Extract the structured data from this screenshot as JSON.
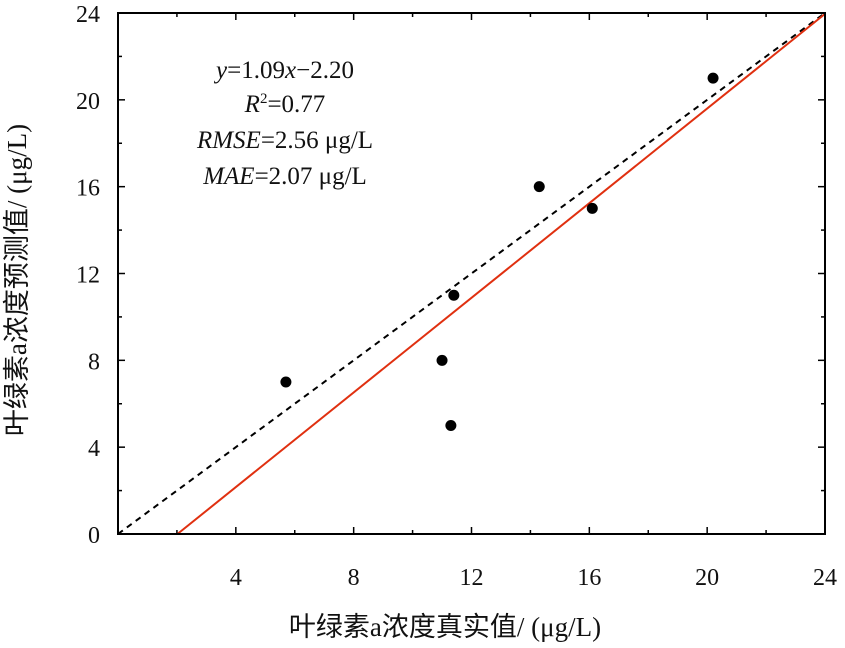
{
  "chart_data": {
    "type": "scatter",
    "xlabel": "叶绿素a浓度真实值/ (μg/L)",
    "ylabel": "叶绿素a浓度预测值/ (μg/L)",
    "xlim": [
      0,
      24
    ],
    "ylim": [
      0,
      24
    ],
    "x_ticks": [
      "4",
      "8",
      "12",
      "16",
      "20",
      "24"
    ],
    "y_ticks": [
      "0",
      "4",
      "8",
      "12",
      "16",
      "20",
      "24"
    ],
    "grid": false,
    "points": [
      {
        "x": 5.7,
        "y": 7
      },
      {
        "x": 11.0,
        "y": 8
      },
      {
        "x": 11.3,
        "y": 5
      },
      {
        "x": 11.4,
        "y": 11
      },
      {
        "x": 14.3,
        "y": 16
      },
      {
        "x": 16.1,
        "y": 15
      },
      {
        "x": 20.2,
        "y": 21
      }
    ],
    "fit_line": {
      "slope": 1.09,
      "intercept": -2.2,
      "color": "#e03010"
    },
    "identity_line": {
      "slope": 1,
      "intercept": 0,
      "style": "dashed",
      "color": "#000000"
    },
    "stats": {
      "equation": {
        "y": "y",
        "eq_mid": "=1.09",
        "x": "x",
        "eq_tail": "−2.20"
      },
      "r2": {
        "label": "R",
        "sup": "2",
        "value": "=0.77"
      },
      "rmse": {
        "label": "RMSE",
        "value": "=2.56 μg/L"
      },
      "mae": {
        "label": "MAE",
        "value": "=2.07 μg/L"
      }
    }
  }
}
